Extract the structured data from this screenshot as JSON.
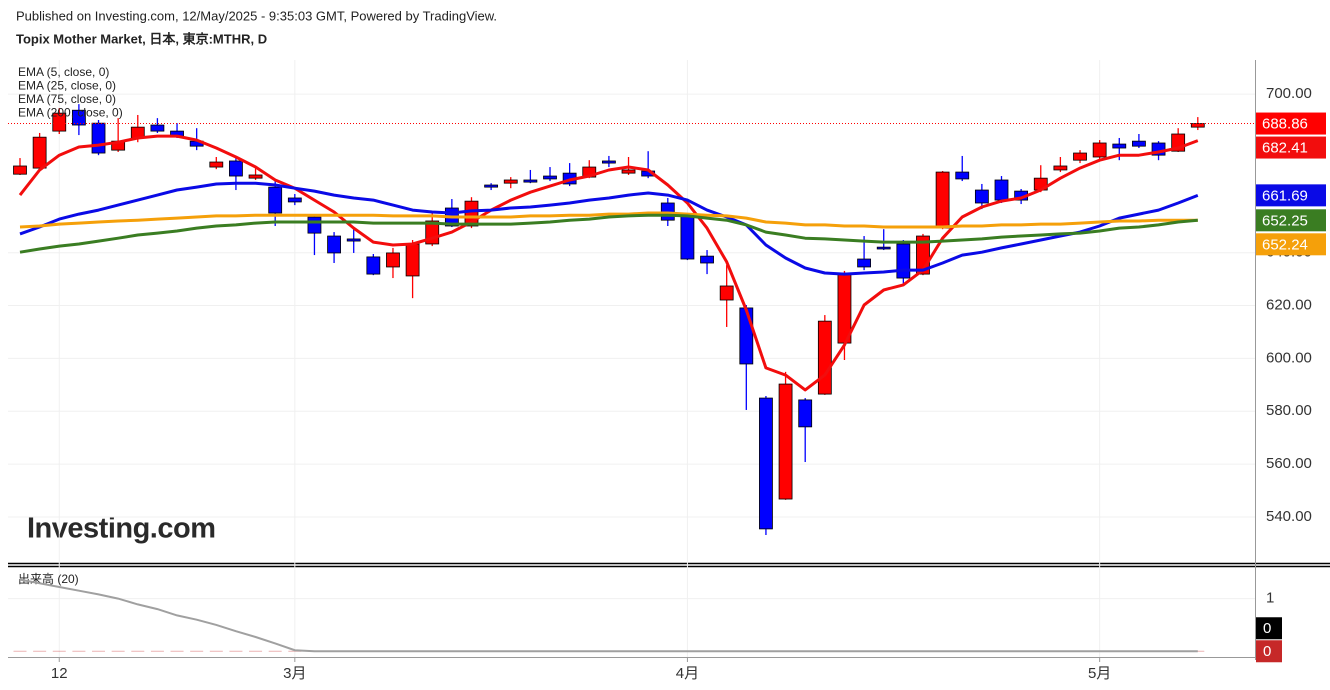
{
  "chart_data": [
    {
      "type": "candlestick",
      "subtitle": "Published on Investing.com, 12/May/2025 - 9:35:03 GMT, Powered by TradingView.",
      "title": "Topix Mother Market, 日本, 東京:MTHR, D",
      "watermark": "Investing.com",
      "categories": [
        null,
        null,
        "12",
        null,
        null,
        null,
        null,
        null,
        null,
        null,
        null,
        null,
        null,
        null,
        "3月",
        null,
        null,
        null,
        null,
        null,
        null,
        null,
        null,
        null,
        null,
        null,
        null,
        null,
        null,
        null,
        null,
        null,
        null,
        null,
        "4月",
        null,
        null,
        null,
        null,
        null,
        null,
        null,
        null,
        null,
        null,
        null,
        null,
        null,
        null,
        null,
        null,
        null,
        null,
        null,
        null,
        "5月",
        null,
        null,
        null,
        null,
        null
      ],
      "open": [
        669.7,
        672.0,
        686.0,
        693.9,
        689.0,
        678.8,
        683.4,
        688.3,
        686.0,
        682.2,
        672.4,
        674.7,
        668.2,
        664.8,
        660.7,
        653.5,
        646.3,
        645.2,
        638.4,
        634.6,
        631.2,
        643.3,
        656.9,
        650.1,
        665.6,
        666.3,
        667.5,
        669.0,
        670.1,
        668.6,
        674.7,
        670.1,
        670.9,
        658.8,
        654.2,
        638.7,
        622.1,
        619.1,
        585.0,
        546.8,
        584.3,
        586.5,
        605.8,
        637.6,
        642.1,
        643.3,
        631.9,
        649.3,
        670.5,
        663.7,
        667.5,
        663.3,
        663.7,
        671.3,
        675.0,
        676.2,
        681.1,
        682.2,
        681.5,
        678.4,
        687.5
      ],
      "high": [
        675.8,
        685.3,
        694.7,
        696.2,
        690.2,
        690.9,
        692.1,
        690.9,
        689.0,
        687.1,
        676.2,
        676.6,
        672.8,
        667.1,
        662.2,
        654.2,
        647.8,
        649.3,
        639.5,
        641.8,
        644.8,
        655.4,
        660.3,
        661.0,
        666.3,
        668.6,
        671.3,
        672.4,
        673.9,
        675.0,
        676.6,
        676.2,
        678.4,
        660.7,
        655.0,
        641.0,
        635.3,
        620.2,
        585.8,
        594.9,
        585.0,
        616.4,
        633.1,
        646.3,
        648.9,
        644.8,
        647.1,
        670.9,
        676.6,
        666.0,
        669.0,
        664.1,
        673.1,
        676.2,
        678.8,
        682.6,
        683.4,
        684.9,
        682.2,
        687.1,
        691.3
      ],
      "low": [
        669.4,
        671.6,
        684.9,
        684.5,
        676.9,
        678.1,
        681.8,
        685.3,
        683.4,
        678.8,
        671.6,
        663.7,
        667.5,
        650.1,
        658.0,
        639.1,
        636.1,
        639.9,
        631.5,
        630.4,
        622.8,
        642.5,
        649.7,
        649.3,
        663.7,
        664.4,
        666.3,
        667.1,
        665.2,
        668.2,
        672.4,
        669.4,
        668.2,
        650.1,
        637.2,
        631.9,
        611.9,
        580.5,
        533.2,
        546.5,
        560.8,
        586.2,
        599.4,
        633.4,
        641.0,
        627.8,
        631.5,
        648.9,
        667.1,
        656.5,
        658.8,
        658.4,
        662.9,
        670.5,
        673.9,
        675.4,
        675.0,
        679.6,
        675.0,
        678.1,
        686.4
      ],
      "close": [
        672.8,
        683.7,
        692.8,
        688.3,
        677.7,
        682.2,
        687.5,
        686.0,
        684.1,
        680.3,
        674.3,
        669.0,
        669.4,
        655.0,
        659.2,
        647.4,
        639.9,
        644.4,
        631.9,
        639.9,
        643.3,
        652.0,
        650.1,
        659.5,
        664.8,
        667.5,
        666.7,
        667.9,
        666.0,
        672.4,
        673.9,
        671.3,
        669.0,
        652.3,
        637.6,
        636.1,
        627.4,
        597.9,
        535.5,
        590.3,
        574.1,
        614.1,
        632.3,
        634.6,
        641.4,
        630.4,
        646.3,
        670.5,
        667.9,
        658.8,
        659.9,
        659.9,
        668.2,
        672.8,
        677.7,
        681.5,
        679.6,
        680.3,
        676.9,
        684.9,
        688.86
      ],
      "up_color": "#ff0000",
      "down_color": "#0000ff",
      "series": [
        {
          "name": "EMA (5, close, 0)",
          "color": "#f20d0d",
          "values": [
            661.8,
            671.3,
            676.9,
            680.0,
            680.7,
            681.8,
            683.4,
            684.1,
            684.1,
            682.6,
            679.6,
            676.2,
            672.4,
            667.5,
            664.4,
            659.9,
            655.4,
            649.3,
            644.0,
            642.9,
            643.3,
            645.5,
            647.8,
            651.6,
            656.1,
            659.9,
            662.9,
            665.2,
            667.5,
            669.0,
            671.3,
            672.4,
            671.3,
            665.6,
            658.8,
            649.3,
            636.5,
            618.3,
            596.4,
            593.7,
            588.1,
            593.7,
            605.1,
            620.2,
            625.9,
            627.8,
            633.4,
            645.5,
            653.5,
            657.3,
            659.5,
            660.7,
            663.7,
            668.2,
            672.0,
            675.0,
            676.9,
            676.9,
            678.1,
            679.6,
            682.41
          ]
        },
        {
          "name": "EMA (25, close, 0)",
          "color": "#0a0ae6",
          "values": [
            647.1,
            649.7,
            652.7,
            654.6,
            656.1,
            658.0,
            659.9,
            661.8,
            663.7,
            664.8,
            666.0,
            666.3,
            666.3,
            665.6,
            664.4,
            663.3,
            661.8,
            660.7,
            659.9,
            658.0,
            656.1,
            655.4,
            655.0,
            655.8,
            656.1,
            656.9,
            657.3,
            658.0,
            658.8,
            659.9,
            660.7,
            661.8,
            662.6,
            661.8,
            659.9,
            656.1,
            653.5,
            650.5,
            642.9,
            638.0,
            634.2,
            632.3,
            631.9,
            632.3,
            632.7,
            633.4,
            633.4,
            636.1,
            639.1,
            640.2,
            641.8,
            643.3,
            644.8,
            646.3,
            647.8,
            650.1,
            653.1,
            654.6,
            656.1,
            658.8,
            661.69
          ]
        },
        {
          "name": "EMA (75, close, 0)",
          "color": "#f5a00a",
          "values": [
            649.7,
            650.1,
            650.8,
            651.2,
            651.6,
            652.0,
            652.3,
            652.7,
            653.1,
            653.5,
            653.9,
            653.9,
            654.2,
            654.2,
            654.2,
            654.2,
            654.2,
            654.2,
            654.2,
            653.9,
            653.9,
            653.9,
            653.5,
            653.5,
            653.5,
            653.5,
            653.9,
            653.9,
            654.2,
            654.2,
            654.6,
            654.6,
            655.0,
            655.0,
            654.6,
            654.2,
            653.9,
            653.1,
            651.6,
            651.2,
            650.5,
            650.5,
            650.1,
            650.1,
            649.7,
            649.7,
            649.7,
            649.7,
            650.1,
            650.1,
            650.5,
            650.5,
            650.8,
            650.8,
            651.2,
            651.6,
            652.0,
            652.0,
            652.3,
            652.3,
            652.24
          ]
        },
        {
          "name": "EMA (200, close, 0)",
          "color": "#3a7d22",
          "values": [
            640.2,
            641.4,
            642.5,
            643.3,
            644.4,
            645.5,
            646.7,
            647.4,
            648.2,
            649.3,
            650.1,
            650.5,
            651.2,
            651.6,
            651.6,
            651.6,
            651.6,
            651.6,
            651.2,
            651.2,
            651.2,
            651.2,
            650.8,
            650.8,
            650.8,
            650.8,
            651.2,
            651.6,
            652.3,
            652.7,
            653.5,
            653.9,
            654.2,
            654.2,
            653.9,
            653.1,
            652.3,
            650.5,
            647.8,
            646.7,
            645.5,
            645.2,
            644.8,
            644.4,
            644.0,
            644.0,
            644.0,
            644.4,
            644.8,
            645.2,
            645.9,
            646.3,
            646.7,
            647.1,
            647.4,
            648.2,
            649.3,
            649.7,
            650.5,
            651.6,
            652.25
          ]
        }
      ],
      "ylim": [
        522.6,
        712.9
      ],
      "yticks": [
        {
          "value": 540,
          "label": "540.00"
        },
        {
          "value": 560,
          "label": "560.00"
        },
        {
          "value": 580,
          "label": "580.00"
        },
        {
          "value": 600,
          "label": "600.00"
        },
        {
          "value": 620,
          "label": "620.00"
        },
        {
          "value": 640,
          "label": "640.00"
        },
        {
          "value": 700,
          "label": "700.00"
        }
      ],
      "grid": true
    },
    {
      "type": "line",
      "series": [
        {
          "name": "出来高 (20)",
          "color": "#a0a0a0",
          "label_color": "#000000",
          "values": [
            1.36,
            1.29,
            1.22,
            1.15,
            1.08,
            1.0,
            0.89,
            0.8,
            0.68,
            0.6,
            0.5,
            0.38,
            0.27,
            0.15,
            0.02,
            0,
            0,
            0,
            0,
            0,
            0,
            0,
            0,
            0,
            0,
            0,
            0,
            0,
            0,
            0,
            0,
            0,
            0,
            0,
            0,
            0,
            0,
            0,
            0,
            0,
            0,
            0,
            0,
            0,
            0,
            0,
            0,
            0,
            0,
            0,
            0,
            0,
            0,
            0,
            0,
            0,
            0,
            0,
            0,
            0,
            0
          ]
        },
        {
          "type": "bar",
          "color": "#c62828",
          "values": [
            0,
            0,
            0,
            0,
            0,
            0,
            0,
            0,
            0,
            0,
            0,
            0,
            0,
            0,
            0,
            0,
            0,
            0,
            0,
            0,
            0,
            0,
            0,
            0,
            0,
            0,
            0,
            0,
            0,
            0,
            0,
            0,
            0,
            0,
            0,
            0,
            0,
            0,
            0,
            0,
            0,
            0,
            0,
            0,
            0,
            0,
            0,
            0,
            0,
            0,
            0,
            0,
            0,
            0,
            0,
            0,
            0,
            0,
            0,
            0,
            0
          ]
        }
      ],
      "ylim": [
        -0.09,
        1.6
      ],
      "yticks": [
        1
      ],
      "grid": true
    }
  ]
}
